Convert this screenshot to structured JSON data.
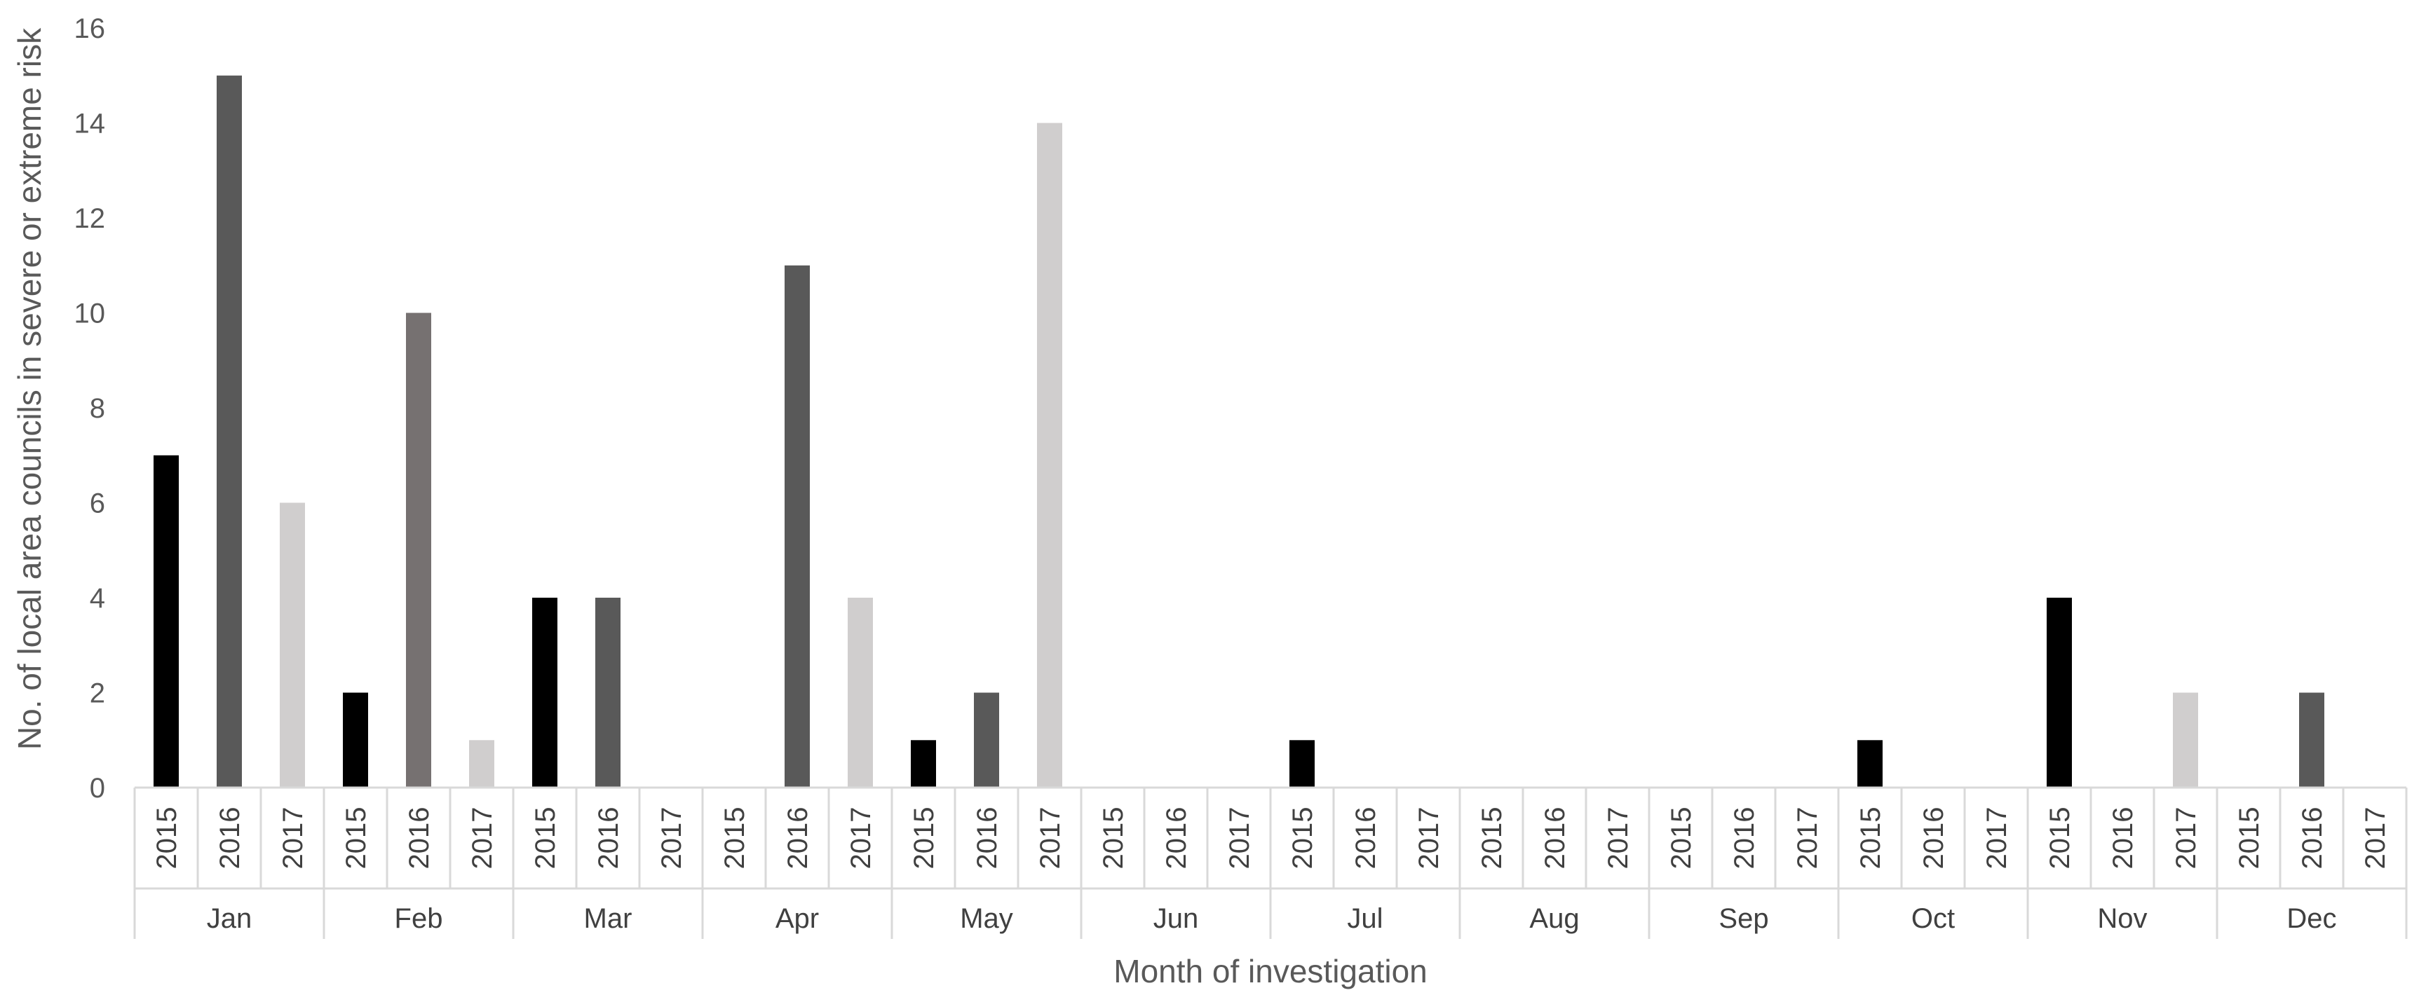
{
  "chart_data": {
    "type": "bar",
    "title": "",
    "xlabel": "Month of investigation",
    "ylabel": "No. of local area councils in severe or extreme risk",
    "ylim": [
      0,
      16
    ],
    "yticks": [
      "0",
      "2",
      "4",
      "6",
      "8",
      "10",
      "12",
      "14",
      "16"
    ],
    "grid": false,
    "legend": "none",
    "months": [
      "Jan",
      "Feb",
      "Mar",
      "Apr",
      "May",
      "Jun",
      "Jul",
      "Aug",
      "Sep",
      "Oct",
      "Nov",
      "Dec"
    ],
    "years": [
      "2015",
      "2016",
      "2017"
    ],
    "series": [
      {
        "year": "2015",
        "color": "#000000",
        "values": [
          7,
          2,
          4,
          0,
          1,
          0,
          1,
          0,
          0,
          1,
          4,
          0
        ]
      },
      {
        "year": "2016",
        "color": "#595959",
        "values": [
          15,
          10,
          4,
          11,
          2,
          0,
          0,
          0,
          0,
          0,
          0,
          2
        ]
      },
      {
        "year": "2017",
        "color": "#d0cece",
        "values": [
          6,
          1,
          0,
          4,
          14,
          0,
          0,
          0,
          0,
          0,
          2,
          0
        ]
      }
    ],
    "bar_colors_by_month": [
      [
        "#000000",
        "#595959",
        "#d0cece"
      ],
      [
        "#000000",
        "#767171",
        "#d0cece"
      ],
      [
        "#000000",
        "#595959",
        "#d0cece"
      ],
      [
        "#000000",
        "#595959",
        "#d0cece"
      ],
      [
        "#000000",
        "#595959",
        "#d0cece"
      ],
      [
        "#000000",
        "#595959",
        "#d0cece"
      ],
      [
        "#000000",
        "#595959",
        "#d0cece"
      ],
      [
        "#000000",
        "#595959",
        "#d0cece"
      ],
      [
        "#000000",
        "#595959",
        "#d0cece"
      ],
      [
        "#000000",
        "#595959",
        "#d0cece"
      ],
      [
        "#000000",
        "#595959",
        "#d0cece"
      ],
      [
        "#000000",
        "#595959",
        "#d0cece"
      ]
    ],
    "axis_color": "#d9d9d9"
  }
}
